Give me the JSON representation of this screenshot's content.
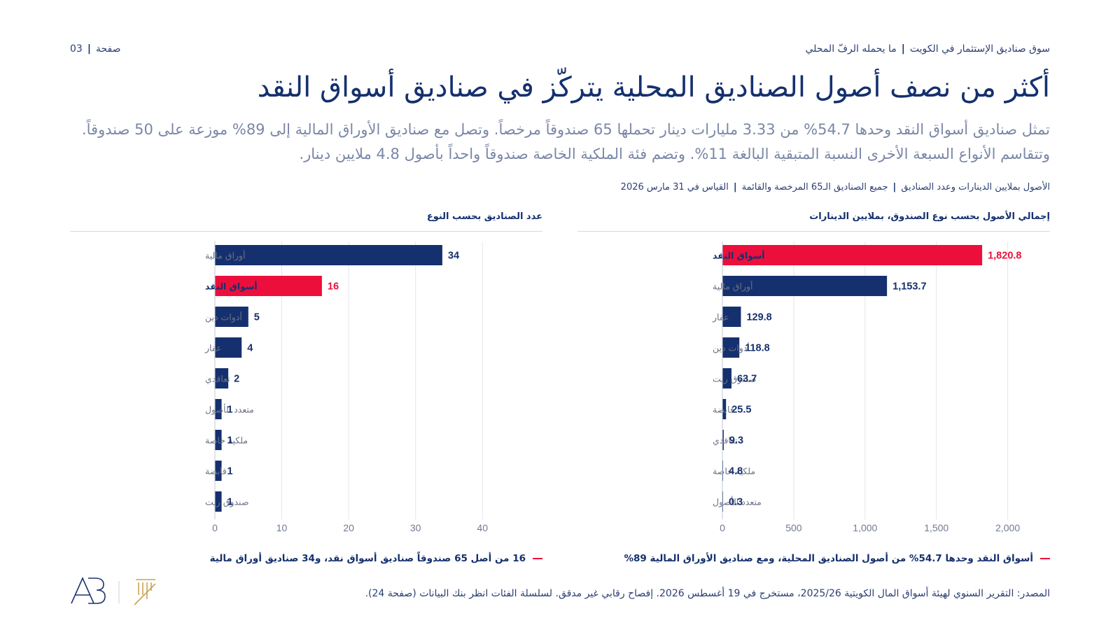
{
  "header": {
    "crumb_section": "سوق صناديق الإستثمار في الكويت",
    "crumb_topic": "ما يحمله الرفّ المحلي",
    "page_label": "صفحة",
    "page_number": "03"
  },
  "headline": "أكثر من نصف أصول الصناديق المحلية يتركّز في صناديق أسواق النقد",
  "lede": "تمثل صناديق أسواق النقد وحدها 54.7% من 3.33 مليارات دينار تحملها 65 صندوقاً مرخصاً. وتصل مع صناديق الأوراق المالية إلى 89% موزعة على 50 صندوقاً. وتتقاسم الأنواع السبعة الأخرى النسبة المتبقية البالغة 11%. وتضم فئة الملكية الخاصة صندوقاً واحداً بأصول 4.8 ملايين دينار.",
  "meta": {
    "units": "الأصول بملايين الدينارات وعدد الصناديق",
    "scope": "جميع الصناديق الـ65 المرخصة والقائمة",
    "date": "القياس في 31 مارس 2026"
  },
  "colors": {
    "navy": "#15306e",
    "accent": "#ec0f3c",
    "gridline": "#e3e6ee",
    "gold": "#c9a456",
    "logo_blue": "#1f3470"
  },
  "chart_data": [
    {
      "type": "bar",
      "orientation": "horizontal",
      "title": "إجمالي الأصول بحسب نوع الصندوق، بملايين الدينارات",
      "categories": [
        "أسواق النقد",
        "أوراق مالية",
        "عقار",
        "أدوات دين",
        "صندوق ريت",
        "قابضة",
        "تعاقدي",
        "ملكية خاصة",
        "متعدد الأصول"
      ],
      "values": [
        1820.8,
        1153.7,
        129.8,
        118.8,
        63.7,
        25.5,
        9.3,
        4.8,
        0.3
      ],
      "value_labels": [
        "1,820.8",
        "1,153.7",
        "129.8",
        "118.8",
        "63.7",
        "25.5",
        "9.3",
        "4.8",
        "0.3"
      ],
      "highlight": "أسواق النقد",
      "xlim": [
        0,
        2100
      ],
      "xticks": [
        0,
        500,
        1000,
        1500,
        2000
      ],
      "xtick_labels": [
        "0",
        "500",
        "1,000",
        "1,500",
        "2,000"
      ],
      "grid": true,
      "note": "أسواق النقد وحدها 54.7% من أصول الصناديق المحلية، ومع صناديق الأوراق المالية 89%"
    },
    {
      "type": "bar",
      "orientation": "horizontal",
      "title": "عدد الصناديق بحسب النوع",
      "categories": [
        "أوراق مالية",
        "أسواق النقد",
        "أدوات دين",
        "عقار",
        "تعاقدي",
        "متعدد الأصول",
        "ملكية خاصة",
        "قابضة",
        "صندوق ريت"
      ],
      "values": [
        34,
        16,
        5,
        4,
        2,
        1,
        1,
        1,
        1
      ],
      "value_labels": [
        "34",
        "16",
        "5",
        "4",
        "2",
        "1",
        "1",
        "1",
        "1"
      ],
      "highlight": "أسواق النقد",
      "xlim": [
        0,
        45
      ],
      "xticks": [
        0,
        10,
        20,
        30,
        40
      ],
      "xtick_labels": [
        "0",
        "10",
        "20",
        "30",
        "40"
      ],
      "grid": true,
      "note": "16 من أصل 65 صندوقاً صناديق أسواق نقد، و34 صناديق أوراق مالية"
    }
  ],
  "source": "المصدر: التقرير السنوي لهيئة أسواق المال الكويتية 2025/26، مستخرج في 19 أغسطس 2026. إفصاح رقابي غير مدقق. لسلسلة الفئات انظر بنك البيانات (صفحة 24).",
  "logos": {
    "brand_mark": "AB"
  }
}
